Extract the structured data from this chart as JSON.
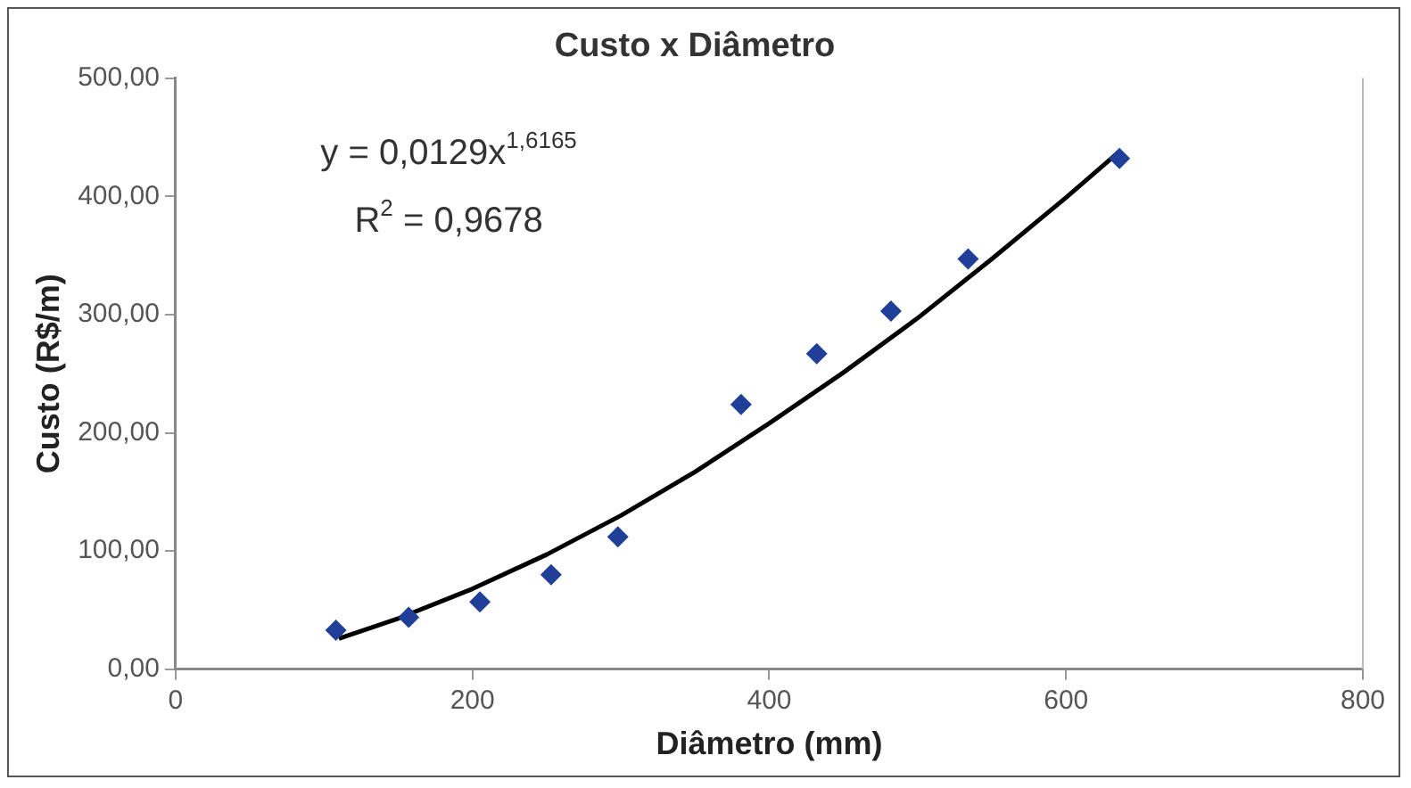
{
  "chart_data": {
    "type": "scatter",
    "title": "Custo x Diâmetro",
    "xlabel": "Diâmetro (mm)",
    "ylabel": "Custo (R$/m)",
    "series": [
      {
        "color": "#1f3f99",
        "marker": "diamond",
        "x": [
          108,
          157,
          205,
          253,
          298,
          381,
          432,
          482,
          534,
          636
        ],
        "values": [
          33,
          44,
          57,
          80,
          112,
          224,
          267,
          303,
          347,
          432
        ]
      },
      {
        "type": "line",
        "color": "#000000",
        "marker": "none",
        "line_style": "solid",
        "x": [
          110,
          150,
          200,
          250,
          300,
          350,
          400,
          450,
          500,
          550,
          600,
          636
        ],
        "values": [
          26,
          43,
          68,
          97,
          130,
          167,
          208,
          251,
          297,
          347,
          399,
          438
        ]
      }
    ],
    "xlim": [
      0,
      800
    ],
    "xticks": [
      0,
      200,
      400,
      600,
      800
    ],
    "ylim": [
      0,
      500
    ],
    "yticks": [
      {
        "value": 0,
        "label": "0,00"
      },
      {
        "value": 100,
        "label": "100,00"
      },
      {
        "value": 200,
        "label": "200,00"
      },
      {
        "value": 300,
        "label": "300,00"
      },
      {
        "value": 400,
        "label": "400,00"
      },
      {
        "value": 500,
        "label": "500,00"
      }
    ],
    "grid": false,
    "legend": false,
    "annotations": [
      "y = 0,0129x$^{1,6165}$",
      "R$^{2}$ = 0,9678"
    ]
  }
}
